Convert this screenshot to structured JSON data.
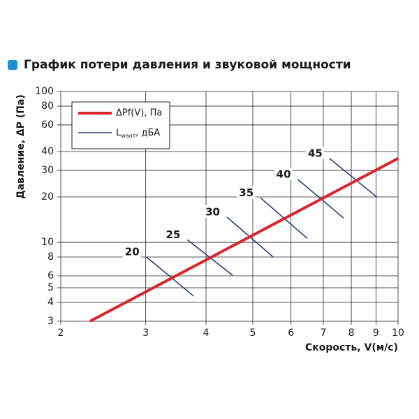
{
  "chart_data": {
    "type": "line",
    "title": "График потери давления и звуковой мощности",
    "x_label": "Скорость, V(м/с)",
    "y_label": "Давление, ΔP (Па)",
    "xscale": "log",
    "yscale": "log",
    "grid": true,
    "xlim": [
      2,
      10
    ],
    "ylim": [
      3,
      100
    ],
    "xticks": [
      2,
      3,
      4,
      5,
      6,
      7,
      8,
      9,
      10
    ],
    "yticks": [
      3,
      4,
      5,
      6,
      8,
      10,
      20,
      30,
      40,
      60,
      80,
      100
    ],
    "series": [
      {
        "name": "ΔPf(V), Па",
        "color": "#d9262b",
        "x": [
          2.3,
          10
        ],
        "values": [
          3,
          36
        ]
      }
    ],
    "noise": {
      "legend_main": "L",
      "legend_sub": "waот",
      "legend_suffix": ", дБА",
      "color": "#2b3a7a",
      "lines": [
        {
          "level": 20,
          "x": [
            3.01,
            3.77
          ],
          "values": [
            8.0,
            4.4
          ]
        },
        {
          "level": 25,
          "x": [
            3.66,
            4.54
          ],
          "values": [
            10.4,
            6.05
          ]
        },
        {
          "level": 30,
          "x": [
            4.42,
            5.51
          ],
          "values": [
            14.7,
            8.0
          ]
        },
        {
          "level": 35,
          "x": [
            5.19,
            6.49
          ],
          "values": [
            19.7,
            10.6
          ]
        },
        {
          "level": 40,
          "x": [
            6.2,
            7.71
          ],
          "values": [
            26.1,
            14.5
          ]
        },
        {
          "level": 45,
          "x": [
            7.21,
            9.05
          ],
          "values": [
            36,
            19.9
          ]
        }
      ]
    }
  }
}
